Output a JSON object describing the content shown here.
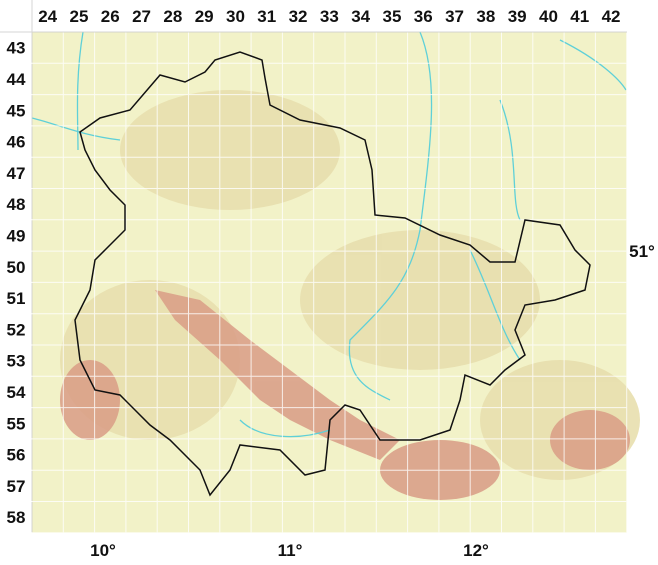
{
  "columns": [
    "24",
    "25",
    "26",
    "27",
    "28",
    "29",
    "30",
    "31",
    "32",
    "33",
    "34",
    "35",
    "36",
    "37",
    "38",
    "39",
    "40",
    "41",
    "42"
  ],
  "rows": [
    "43",
    "44",
    "45",
    "46",
    "47",
    "48",
    "49",
    "50",
    "51",
    "52",
    "53",
    "54",
    "55",
    "56",
    "57",
    "58"
  ],
  "longitudes": [
    "10°",
    "11°",
    "12°"
  ],
  "latitudes": [
    "51°"
  ],
  "colors": {
    "lowland": "#f2f2c8",
    "hill": "#e6dca8",
    "mountain": "#d89a86",
    "grid": "#ffffff",
    "border": "#111111",
    "river": "#5fd0d8"
  }
}
